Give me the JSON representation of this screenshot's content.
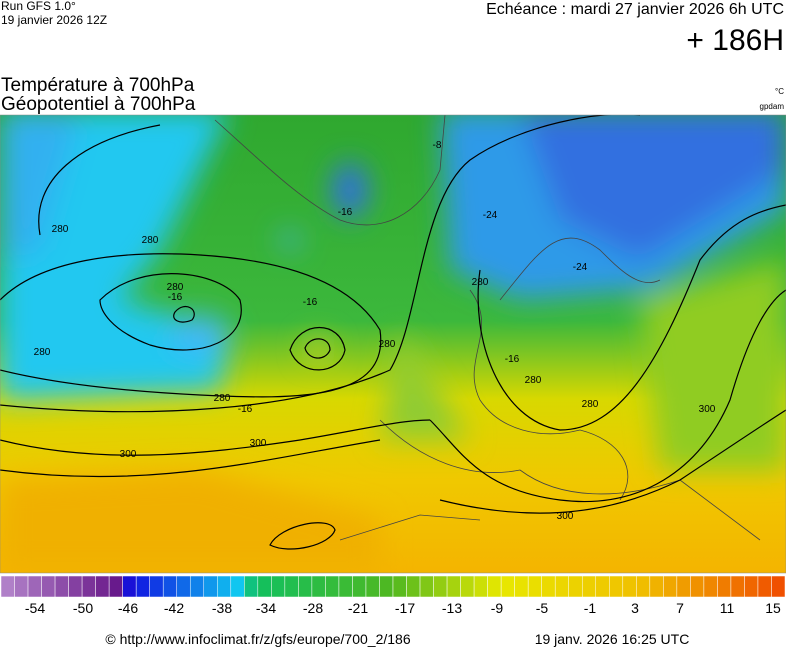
{
  "header": {
    "run": "Run GFS 1.0°",
    "run_date": "19 janvier 2026 12Z",
    "valid": "Echéance : mardi 27 janvier 2026 6h UTC",
    "lead": "+ 186H"
  },
  "titles": {
    "temperature": "Température à 700hPa",
    "geopotential": "Géopotentiel à 700hPa",
    "temperature_unit": "°C",
    "geopotential_unit": "gpdam"
  },
  "contour_labels": [
    "280",
    "280",
    "280",
    "280",
    "280",
    "280",
    "280",
    "280",
    "280",
    "300",
    "300",
    "300",
    "300",
    "-16",
    "-16",
    "-16",
    "-16",
    "-16",
    "-24",
    "-24",
    "-8"
  ],
  "colorbar": {
    "labels": [
      -54,
      -50,
      -46,
      -42,
      -38,
      -34,
      -28,
      -21,
      -17,
      -13,
      -9,
      -5,
      -1,
      3,
      7,
      11,
      15
    ]
  },
  "footer": {
    "url": "© http://www.infoclimat.fr/z/gfs/europe/700_2/186",
    "timestamp": "19 janv. 2026 16:25 UTC"
  }
}
